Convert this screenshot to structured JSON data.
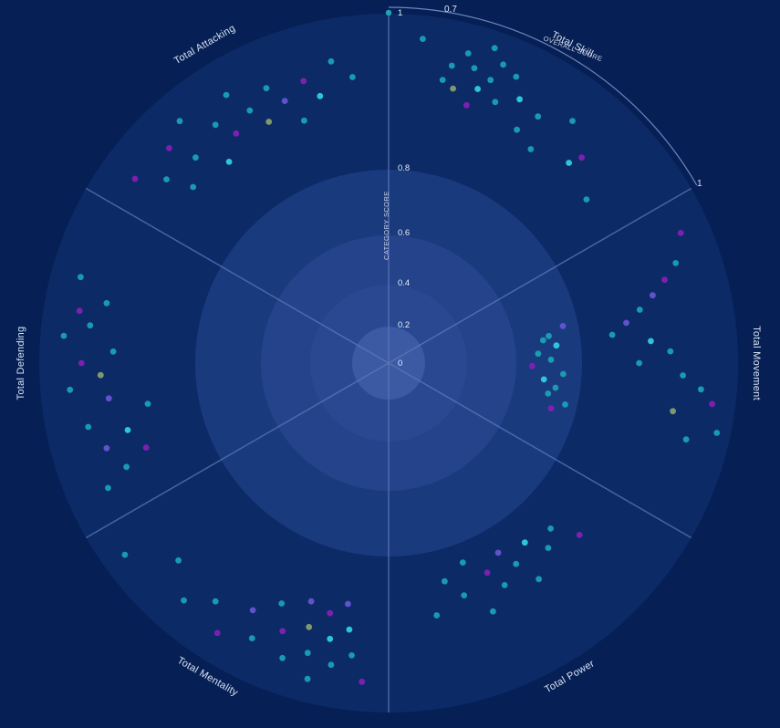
{
  "colors": {
    "background": "#062056",
    "outer_disc": "#0c2a66",
    "ring": "#1a3a7e",
    "ring_inner": "#2b4a93",
    "core": "#3b5aa3",
    "axis": "#5c78b8",
    "teal": "#1aa6b7",
    "cyan": "#2fd7e8",
    "purple": "#8a1fb8",
    "violet": "#6a55d6",
    "olive": "#8ca56a"
  },
  "chart_data": {
    "type": "scatter",
    "coordinate_system": "polar",
    "categories": [
      "Total Skill",
      "Total Movement",
      "Total Power",
      "Total Mentality",
      "Total Defending",
      "Total Attacking"
    ],
    "radial_axis": {
      "label": "CATEGORY SCORE",
      "ticks": [
        0,
        0.2,
        0.4,
        0.6,
        0.8,
        1
      ],
      "range": [
        0,
        1
      ]
    },
    "overall_score_arc": {
      "label": "OVERALL SCORE",
      "start_label": "0.7",
      "end_label": "1",
      "range": [
        0.7,
        1
      ]
    },
    "grid": true,
    "legend": "none",
    "points": [
      {
        "cat": 0,
        "frac": 0.1,
        "r": 0.92,
        "c": "teal"
      },
      {
        "cat": 0,
        "frac": 0.18,
        "r": 0.8,
        "c": "teal"
      },
      {
        "cat": 0,
        "frac": 0.2,
        "r": 0.85,
        "c": "teal"
      },
      {
        "cat": 0,
        "frac": 0.22,
        "r": 0.78,
        "c": "olive"
      },
      {
        "cat": 0,
        "frac": 0.24,
        "r": 0.9,
        "c": "teal"
      },
      {
        "cat": 0,
        "frac": 0.27,
        "r": 0.86,
        "c": "teal"
      },
      {
        "cat": 0,
        "frac": 0.28,
        "r": 0.74,
        "c": "purple"
      },
      {
        "cat": 0,
        "frac": 0.3,
        "r": 0.8,
        "c": "cyan"
      },
      {
        "cat": 0,
        "frac": 0.31,
        "r": 0.94,
        "c": "teal"
      },
      {
        "cat": 0,
        "frac": 0.33,
        "r": 0.84,
        "c": "teal"
      },
      {
        "cat": 0,
        "frac": 0.35,
        "r": 0.9,
        "c": "teal"
      },
      {
        "cat": 0,
        "frac": 0.37,
        "r": 0.78,
        "c": "teal"
      },
      {
        "cat": 0,
        "frac": 0.4,
        "r": 0.88,
        "c": "teal"
      },
      {
        "cat": 0,
        "frac": 0.44,
        "r": 0.82,
        "c": "cyan"
      },
      {
        "cat": 0,
        "frac": 0.48,
        "r": 0.73,
        "c": "teal"
      },
      {
        "cat": 0,
        "frac": 0.52,
        "r": 0.8,
        "c": "teal"
      },
      {
        "cat": 0,
        "frac": 0.56,
        "r": 0.7,
        "c": "teal"
      },
      {
        "cat": 0,
        "frac": 0.62,
        "r": 0.85,
        "c": "teal"
      },
      {
        "cat": 0,
        "frac": 0.7,
        "r": 0.74,
        "c": "cyan"
      },
      {
        "cat": 0,
        "frac": 0.72,
        "r": 0.78,
        "c": "purple"
      },
      {
        "cat": 0,
        "frac": 0.84,
        "r": 0.7,
        "c": "teal"
      },
      {
        "cat": 1,
        "frac": 0.1,
        "r": 0.9,
        "c": "purple"
      },
      {
        "cat": 1,
        "frac": 0.18,
        "r": 0.85,
        "c": "teal"
      },
      {
        "cat": 1,
        "frac": 0.22,
        "r": 0.8,
        "c": "purple"
      },
      {
        "cat": 1,
        "frac": 0.26,
        "r": 0.75,
        "c": "violet"
      },
      {
        "cat": 1,
        "frac": 0.3,
        "r": 0.7,
        "c": "teal"
      },
      {
        "cat": 1,
        "frac": 0.34,
        "r": 0.65,
        "c": "violet"
      },
      {
        "cat": 1,
        "frac": 0.38,
        "r": 0.6,
        "c": "teal"
      },
      {
        "cat": 1,
        "frac": 0.42,
        "r": 0.72,
        "c": "cyan"
      },
      {
        "cat": 1,
        "frac": 0.46,
        "r": 0.78,
        "c": "teal"
      },
      {
        "cat": 1,
        "frac": 0.5,
        "r": 0.68,
        "c": "teal"
      },
      {
        "cat": 1,
        "frac": 0.54,
        "r": 0.82,
        "c": "teal"
      },
      {
        "cat": 1,
        "frac": 0.58,
        "r": 0.88,
        "c": "teal"
      },
      {
        "cat": 1,
        "frac": 0.62,
        "r": 0.92,
        "c": "purple"
      },
      {
        "cat": 1,
        "frac": 0.66,
        "r": 0.8,
        "c": "olive"
      },
      {
        "cat": 1,
        "frac": 0.7,
        "r": 0.95,
        "c": "teal"
      },
      {
        "cat": 1,
        "frac": 0.74,
        "r": 0.86,
        "c": "teal"
      },
      {
        "cat": 1,
        "frac": 0.36,
        "r": 0.38,
        "c": "teal"
      },
      {
        "cat": 1,
        "frac": 0.4,
        "r": 0.42,
        "c": "cyan"
      },
      {
        "cat": 1,
        "frac": 0.44,
        "r": 0.36,
        "c": "teal"
      },
      {
        "cat": 1,
        "frac": 0.48,
        "r": 0.4,
        "c": "teal"
      },
      {
        "cat": 1,
        "frac": 0.52,
        "r": 0.34,
        "c": "purple"
      },
      {
        "cat": 1,
        "frac": 0.56,
        "r": 0.44,
        "c": "teal"
      },
      {
        "cat": 1,
        "frac": 0.6,
        "r": 0.38,
        "c": "cyan"
      },
      {
        "cat": 1,
        "frac": 0.64,
        "r": 0.42,
        "c": "teal"
      },
      {
        "cat": 1,
        "frac": 0.3,
        "r": 0.45,
        "c": "violet"
      },
      {
        "cat": 1,
        "frac": 0.34,
        "r": 0.4,
        "c": "teal"
      },
      {
        "cat": 1,
        "frac": 0.68,
        "r": 0.4,
        "c": "teal"
      },
      {
        "cat": 1,
        "frac": 0.72,
        "r": 0.46,
        "c": "teal"
      },
      {
        "cat": 1,
        "frac": 0.76,
        "r": 0.42,
        "c": "purple"
      },
      {
        "cat": 2,
        "frac": 0.2,
        "r": 0.7,
        "c": "purple"
      },
      {
        "cat": 2,
        "frac": 0.26,
        "r": 0.62,
        "c": "teal"
      },
      {
        "cat": 2,
        "frac": 0.32,
        "r": 0.66,
        "c": "teal"
      },
      {
        "cat": 2,
        "frac": 0.38,
        "r": 0.6,
        "c": "cyan"
      },
      {
        "cat": 2,
        "frac": 0.42,
        "r": 0.72,
        "c": "teal"
      },
      {
        "cat": 2,
        "frac": 0.46,
        "r": 0.64,
        "c": "teal"
      },
      {
        "cat": 2,
        "frac": 0.5,
        "r": 0.58,
        "c": "violet"
      },
      {
        "cat": 2,
        "frac": 0.54,
        "r": 0.68,
        "c": "teal"
      },
      {
        "cat": 2,
        "frac": 0.58,
        "r": 0.62,
        "c": "purple"
      },
      {
        "cat": 2,
        "frac": 0.62,
        "r": 0.74,
        "c": "teal"
      },
      {
        "cat": 2,
        "frac": 0.66,
        "r": 0.56,
        "c": "teal"
      },
      {
        "cat": 2,
        "frac": 0.7,
        "r": 0.66,
        "c": "teal"
      },
      {
        "cat": 2,
        "frac": 0.76,
        "r": 0.6,
        "c": "teal"
      },
      {
        "cat": 2,
        "frac": 0.82,
        "r": 0.7,
        "c": "teal"
      },
      {
        "cat": 3,
        "frac": 0.08,
        "r": 0.9,
        "c": "purple"
      },
      {
        "cat": 3,
        "frac": 0.12,
        "r": 0.82,
        "c": "teal"
      },
      {
        "cat": 3,
        "frac": 0.14,
        "r": 0.74,
        "c": "cyan"
      },
      {
        "cat": 3,
        "frac": 0.16,
        "r": 0.66,
        "c": "violet"
      },
      {
        "cat": 3,
        "frac": 0.18,
        "r": 0.86,
        "c": "teal"
      },
      {
        "cat": 3,
        "frac": 0.2,
        "r": 0.78,
        "c": "cyan"
      },
      {
        "cat": 3,
        "frac": 0.22,
        "r": 0.7,
        "c": "purple"
      },
      {
        "cat": 3,
        "frac": 0.24,
        "r": 0.92,
        "c": "teal"
      },
      {
        "cat": 3,
        "frac": 0.26,
        "r": 0.84,
        "c": "teal"
      },
      {
        "cat": 3,
        "frac": 0.28,
        "r": 0.76,
        "c": "olive"
      },
      {
        "cat": 3,
        "frac": 0.3,
        "r": 0.68,
        "c": "violet"
      },
      {
        "cat": 3,
        "frac": 0.33,
        "r": 0.88,
        "c": "teal"
      },
      {
        "cat": 3,
        "frac": 0.36,
        "r": 0.8,
        "c": "purple"
      },
      {
        "cat": 3,
        "frac": 0.4,
        "r": 0.72,
        "c": "teal"
      },
      {
        "cat": 3,
        "frac": 0.44,
        "r": 0.86,
        "c": "teal"
      },
      {
        "cat": 3,
        "frac": 0.48,
        "r": 0.78,
        "c": "violet"
      },
      {
        "cat": 3,
        "frac": 0.54,
        "r": 0.9,
        "c": "purple"
      },
      {
        "cat": 3,
        "frac": 0.6,
        "r": 0.82,
        "c": "teal"
      },
      {
        "cat": 3,
        "frac": 0.68,
        "r": 0.88,
        "c": "teal"
      },
      {
        "cat": 3,
        "frac": 0.78,
        "r": 0.8,
        "c": "teal"
      },
      {
        "cat": 3,
        "frac": 0.9,
        "r": 0.92,
        "c": "teal"
      },
      {
        "cat": 4,
        "frac": 0.1,
        "r": 0.86,
        "c": "teal"
      },
      {
        "cat": 4,
        "frac": 0.14,
        "r": 0.78,
        "c": "teal"
      },
      {
        "cat": 4,
        "frac": 0.18,
        "r": 0.7,
        "c": "purple"
      },
      {
        "cat": 4,
        "frac": 0.22,
        "r": 0.82,
        "c": "violet"
      },
      {
        "cat": 4,
        "frac": 0.26,
        "r": 0.74,
        "c": "cyan"
      },
      {
        "cat": 4,
        "frac": 0.3,
        "r": 0.86,
        "c": "teal"
      },
      {
        "cat": 4,
        "frac": 0.34,
        "r": 0.66,
        "c": "teal"
      },
      {
        "cat": 4,
        "frac": 0.38,
        "r": 0.78,
        "c": "violet"
      },
      {
        "cat": 4,
        "frac": 0.42,
        "r": 0.9,
        "c": "teal"
      },
      {
        "cat": 4,
        "frac": 0.46,
        "r": 0.8,
        "c": "olive"
      },
      {
        "cat": 4,
        "frac": 0.5,
        "r": 0.86,
        "c": "purple"
      },
      {
        "cat": 4,
        "frac": 0.54,
        "r": 0.76,
        "c": "teal"
      },
      {
        "cat": 4,
        "frac": 0.58,
        "r": 0.92,
        "c": "teal"
      },
      {
        "cat": 4,
        "frac": 0.62,
        "r": 0.84,
        "c": "teal"
      },
      {
        "cat": 4,
        "frac": 0.66,
        "r": 0.88,
        "c": "purple"
      },
      {
        "cat": 4,
        "frac": 0.7,
        "r": 0.8,
        "c": "teal"
      },
      {
        "cat": 4,
        "frac": 0.76,
        "r": 0.9,
        "c": "teal"
      },
      {
        "cat": 5,
        "frac": 0.1,
        "r": 0.88,
        "c": "purple"
      },
      {
        "cat": 5,
        "frac": 0.16,
        "r": 0.8,
        "c": "teal"
      },
      {
        "cat": 5,
        "frac": 0.2,
        "r": 0.72,
        "c": "teal"
      },
      {
        "cat": 5,
        "frac": 0.24,
        "r": 0.86,
        "c": "purple"
      },
      {
        "cat": 5,
        "frac": 0.28,
        "r": 0.78,
        "c": "teal"
      },
      {
        "cat": 5,
        "frac": 0.32,
        "r": 0.9,
        "c": "teal"
      },
      {
        "cat": 5,
        "frac": 0.36,
        "r": 0.7,
        "c": "cyan"
      },
      {
        "cat": 5,
        "frac": 0.4,
        "r": 0.82,
        "c": "teal"
      },
      {
        "cat": 5,
        "frac": 0.44,
        "r": 0.76,
        "c": "purple"
      },
      {
        "cat": 5,
        "frac": 0.48,
        "r": 0.88,
        "c": "teal"
      },
      {
        "cat": 5,
        "frac": 0.52,
        "r": 0.8,
        "c": "teal"
      },
      {
        "cat": 5,
        "frac": 0.56,
        "r": 0.74,
        "c": "olive"
      },
      {
        "cat": 5,
        "frac": 0.6,
        "r": 0.84,
        "c": "teal"
      },
      {
        "cat": 5,
        "frac": 0.64,
        "r": 0.78,
        "c": "violet"
      },
      {
        "cat": 5,
        "frac": 0.68,
        "r": 0.7,
        "c": "teal"
      },
      {
        "cat": 5,
        "frac": 0.72,
        "r": 0.82,
        "c": "purple"
      },
      {
        "cat": 5,
        "frac": 0.76,
        "r": 0.76,
        "c": "cyan"
      },
      {
        "cat": 5,
        "frac": 0.82,
        "r": 0.86,
        "c": "teal"
      },
      {
        "cat": 5,
        "frac": 0.88,
        "r": 0.8,
        "c": "teal"
      }
    ]
  }
}
